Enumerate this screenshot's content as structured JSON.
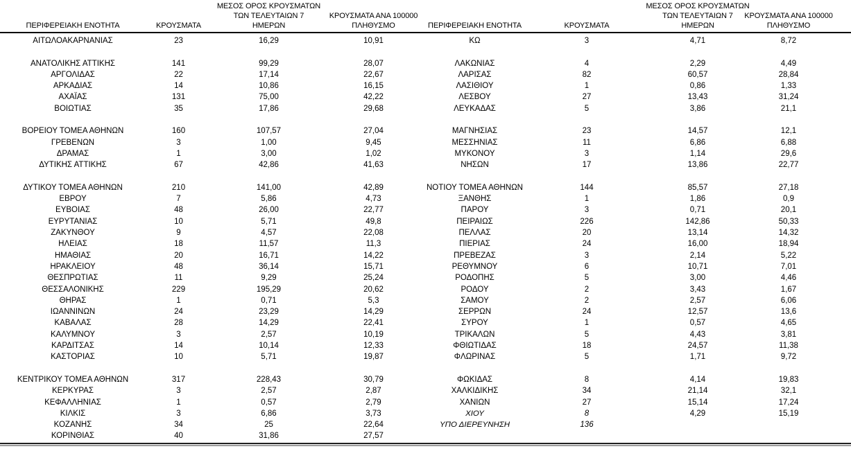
{
  "column_headers": {
    "region": "ΠΕΡΙΦΕΡΕΙΑΚΗ ΕΝΟΤΗΤΑ",
    "cases": "ΚΡΟΥΣΜΑΤΑ",
    "avg7_line1": "ΜΕΣΟΣ ΟΡΟΣ ΚΡΟΥΣΜΑΤΩΝ",
    "avg7_line2": "ΤΩΝ ΤΕΛΕΥΤΑΙΩΝ 7",
    "avg7_line3": "ΗΜΕΡΩΝ",
    "per100k_line1": "ΚΡΟΥΣΜΑΤΑ ΑΝΑ 100000",
    "per100k_line2": "ΠΛΗΘΥΣΜΟ"
  },
  "tables": [
    {
      "rows": [
        {
          "name": "ΑΙΤΩΛΟΑΚΑΡΝΑΝΙΑΣ",
          "cases": "23",
          "avg7": "16,29",
          "per100k": "10,91"
        },
        null,
        {
          "name": "ΑΝΑΤΟΛΙΚΗΣ ΑΤΤΙΚΗΣ",
          "cases": "141",
          "avg7": "99,29",
          "per100k": "28,07"
        },
        {
          "name": "ΑΡΓΟΛΙΔΑΣ",
          "cases": "22",
          "avg7": "17,14",
          "per100k": "22,67"
        },
        {
          "name": "ΑΡΚΑΔΙΑΣ",
          "cases": "14",
          "avg7": "10,86",
          "per100k": "16,15"
        },
        {
          "name": "ΑΧΑΪΑΣ",
          "cases": "131",
          "avg7": "75,00",
          "per100k": "42,22"
        },
        {
          "name": "ΒΟΙΩΤΙΑΣ",
          "cases": "35",
          "avg7": "17,86",
          "per100k": "29,68"
        },
        null,
        {
          "name": "ΒΟΡΕΙΟΥ ΤΟΜΕΑ ΑΘΗΝΩΝ",
          "cases": "160",
          "avg7": "107,57",
          "per100k": "27,04"
        },
        {
          "name": "ΓΡΕΒΕΝΩΝ",
          "cases": "3",
          "avg7": "1,00",
          "per100k": "9,45"
        },
        {
          "name": "ΔΡΑΜΑΣ",
          "cases": "1",
          "avg7": "3,00",
          "per100k": "1,02"
        },
        {
          "name": "ΔΥΤΙΚΗΣ ΑΤΤΙΚΗΣ",
          "cases": "67",
          "avg7": "42,86",
          "per100k": "41,63"
        },
        null,
        {
          "name": "ΔΥΤΙΚΟΥ ΤΟΜΕΑ ΑΘΗΝΩΝ",
          "cases": "210",
          "avg7": "141,00",
          "per100k": "42,89"
        },
        {
          "name": "ΕΒΡΟΥ",
          "cases": "7",
          "avg7": "5,86",
          "per100k": "4,73"
        },
        {
          "name": "ΕΥΒΟΙΑΣ",
          "cases": "48",
          "avg7": "26,00",
          "per100k": "22,77"
        },
        {
          "name": "ΕΥΡΥΤΑΝΙΑΣ",
          "cases": "10",
          "avg7": "5,71",
          "per100k": "49,8"
        },
        {
          "name": "ΖΑΚΥΝΘΟΥ",
          "cases": "9",
          "avg7": "4,57",
          "per100k": "22,08"
        },
        {
          "name": "ΗΛΕΙΑΣ",
          "cases": "18",
          "avg7": "11,57",
          "per100k": "11,3"
        },
        {
          "name": "ΗΜΑΘΙΑΣ",
          "cases": "20",
          "avg7": "16,71",
          "per100k": "14,22"
        },
        {
          "name": "ΗΡΑΚΛΕΙΟΥ",
          "cases": "48",
          "avg7": "36,14",
          "per100k": "15,71"
        },
        {
          "name": "ΘΕΣΠΡΩΤΙΑΣ",
          "cases": "11",
          "avg7": "9,29",
          "per100k": "25,24"
        },
        {
          "name": "ΘΕΣΣΑΛΟΝΙΚΗΣ",
          "cases": "229",
          "avg7": "195,29",
          "per100k": "20,62"
        },
        {
          "name": "ΘΗΡΑΣ",
          "cases": "1",
          "avg7": "0,71",
          "per100k": "5,3"
        },
        {
          "name": "ΙΩΑΝΝΙΝΩΝ",
          "cases": "24",
          "avg7": "23,29",
          "per100k": "14,29"
        },
        {
          "name": "ΚΑΒΑΛΑΣ",
          "cases": "28",
          "avg7": "14,29",
          "per100k": "22,41"
        },
        {
          "name": "ΚΑΛΥΜΝΟΥ",
          "cases": "3",
          "avg7": "2,57",
          "per100k": "10,19"
        },
        {
          "name": "ΚΑΡΔΙΤΣΑΣ",
          "cases": "14",
          "avg7": "10,14",
          "per100k": "12,33"
        },
        {
          "name": "ΚΑΣΤΟΡΙΑΣ",
          "cases": "10",
          "avg7": "5,71",
          "per100k": "19,87"
        },
        null,
        {
          "name": "ΚΕΝΤΡΙΚΟΥ ΤΟΜΕΑ ΑΘΗΝΩΝ",
          "cases": "317",
          "avg7": "228,43",
          "per100k": "30,79"
        },
        {
          "name": "ΚΕΡΚΥΡΑΣ",
          "cases": "3",
          "avg7": "2,57",
          "per100k": "2,87"
        },
        {
          "name": "ΚΕΦΑΛΛΗΝΙΑΣ",
          "cases": "1",
          "avg7": "0,57",
          "per100k": "2,79"
        },
        {
          "name": "ΚΙΛΚΙΣ",
          "cases": "3",
          "avg7": "6,86",
          "per100k": "3,73"
        },
        {
          "name": "ΚΟΖΑΝΗΣ",
          "cases": "34",
          "avg7": "25",
          "per100k": "22,64"
        },
        {
          "name": "ΚΟΡΙΝΘΙΑΣ",
          "cases": "40",
          "avg7": "31,86",
          "per100k": "27,57"
        }
      ]
    },
    {
      "rows": [
        {
          "name": "ΚΩ",
          "cases": "3",
          "avg7": "4,71",
          "per100k": "8,72"
        },
        null,
        {
          "name": "ΛΑΚΩΝΙΑΣ",
          "cases": "4",
          "avg7": "2,29",
          "per100k": "4,49"
        },
        {
          "name": "ΛΑΡΙΣΑΣ",
          "cases": "82",
          "avg7": "60,57",
          "per100k": "28,84"
        },
        {
          "name": "ΛΑΣΙΘΙΟΥ",
          "cases": "1",
          "avg7": "0,86",
          "per100k": "1,33"
        },
        {
          "name": "ΛΕΣΒΟΥ",
          "cases": "27",
          "avg7": "13,43",
          "per100k": "31,24"
        },
        {
          "name": "ΛΕΥΚΑΔΑΣ",
          "cases": "5",
          "avg7": "3,86",
          "per100k": "21,1"
        },
        null,
        {
          "name": "ΜΑΓΝΗΣΙΑΣ",
          "cases": "23",
          "avg7": "14,57",
          "per100k": "12,1"
        },
        {
          "name": "ΜΕΣΣΗΝΙΑΣ",
          "cases": "11",
          "avg7": "6,86",
          "per100k": "6,88"
        },
        {
          "name": "ΜΥΚΟΝΟΥ",
          "cases": "3",
          "avg7": "1,14",
          "per100k": "29,6"
        },
        {
          "name": "ΝΗΣΩΝ",
          "cases": "17",
          "avg7": "13,86",
          "per100k": "22,77"
        },
        null,
        {
          "name": "ΝΟΤΙΟΥ ΤΟΜΕΑ ΑΘΗΝΩΝ",
          "cases": "144",
          "avg7": "85,57",
          "per100k": "27,18"
        },
        {
          "name": "ΞΑΝΘΗΣ",
          "cases": "1",
          "avg7": "1,86",
          "per100k": "0,9"
        },
        {
          "name": "ΠΑΡΟΥ",
          "cases": "3",
          "avg7": "0,71",
          "per100k": "20,1"
        },
        {
          "name": "ΠΕΙΡΑΙΩΣ",
          "cases": "226",
          "avg7": "142,86",
          "per100k": "50,33"
        },
        {
          "name": "ΠΕΛΛΑΣ",
          "cases": "20",
          "avg7": "13,14",
          "per100k": "14,32"
        },
        {
          "name": "ΠΙΕΡΙΑΣ",
          "cases": "24",
          "avg7": "16,00",
          "per100k": "18,94"
        },
        {
          "name": "ΠΡΕΒΕΖΑΣ",
          "cases": "3",
          "avg7": "2,14",
          "per100k": "5,22"
        },
        {
          "name": "ΡΕΘΥΜΝΟΥ",
          "cases": "6",
          "avg7": "10,71",
          "per100k": "7,01"
        },
        {
          "name": "ΡΟΔΟΠΗΣ",
          "cases": "5",
          "avg7": "3,00",
          "per100k": "4,46"
        },
        {
          "name": "ΡΟΔΟΥ",
          "cases": "2",
          "avg7": "3,43",
          "per100k": "1,67"
        },
        {
          "name": "ΣΑΜΟΥ",
          "cases": "2",
          "avg7": "2,57",
          "per100k": "6,06"
        },
        {
          "name": "ΣΕΡΡΩΝ",
          "cases": "24",
          "avg7": "12,57",
          "per100k": "13,6"
        },
        {
          "name": "ΣΥΡΟΥ",
          "cases": "1",
          "avg7": "0,57",
          "per100k": "4,65"
        },
        {
          "name": "ΤΡΙΚΑΛΩΝ",
          "cases": "5",
          "avg7": "4,43",
          "per100k": "3,81"
        },
        {
          "name": "ΦΘΙΩΤΙΔΑΣ",
          "cases": "18",
          "avg7": "24,57",
          "per100k": "11,38"
        },
        {
          "name": "ΦΛΩΡΙΝΑΣ",
          "cases": "5",
          "avg7": "1,71",
          "per100k": "9,72"
        },
        null,
        {
          "name": "ΦΩΚΙΔΑΣ",
          "cases": "8",
          "avg7": "4,14",
          "per100k": "19,83"
        },
        {
          "name": "ΧΑΛΚΙΔΙΚΗΣ",
          "cases": "34",
          "avg7": "21,14",
          "per100k": "32,1"
        },
        {
          "name": "ΧΑΝΙΩΝ",
          "cases": "27",
          "avg7": "15,14",
          "per100k": "17,24"
        },
        {
          "name": "ΧΙΟΥ",
          "cases": "8",
          "avg7": "4,29",
          "per100k": "15,19",
          "italic": true
        },
        {
          "name": "ΥΠΟ ΔΙΕΡΕΥΝΗΣΗ",
          "cases": "136",
          "avg7": "",
          "per100k": "",
          "italic": true
        },
        null
      ]
    }
  ]
}
